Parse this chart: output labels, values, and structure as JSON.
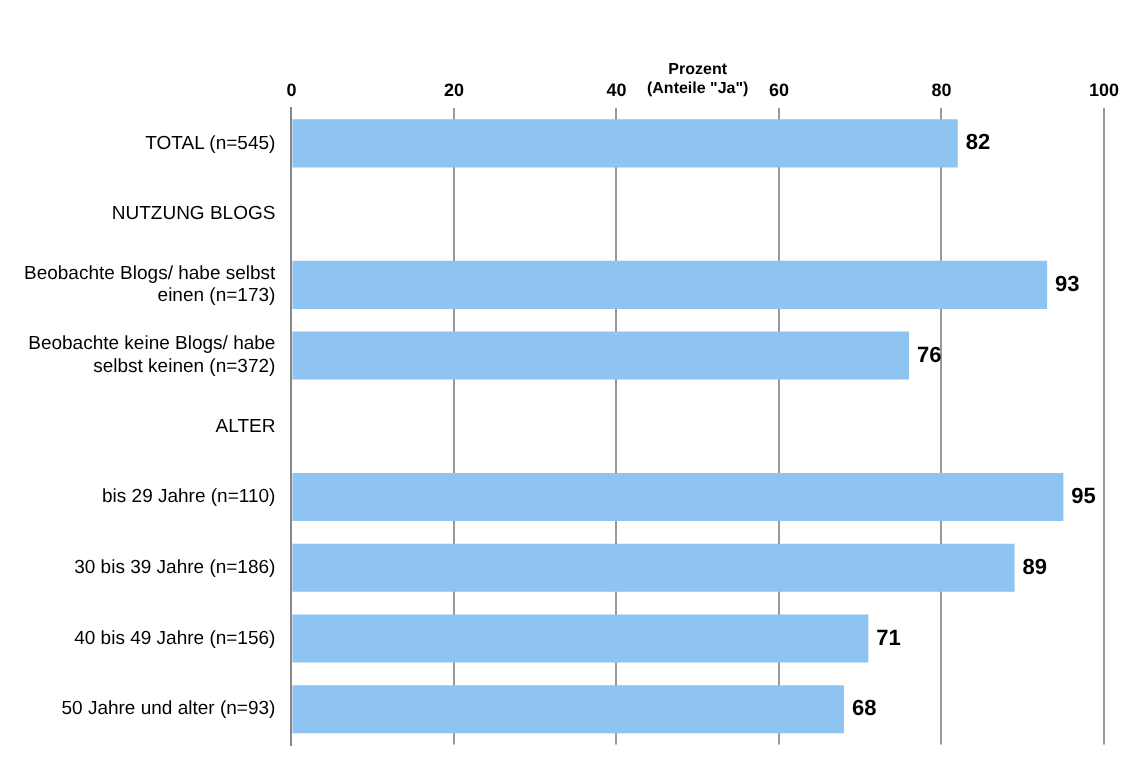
{
  "chart_data": {
    "type": "bar",
    "orientation": "horizontal",
    "xlabel": "Prozent\n(Anteile \"Ja\")",
    "categories": [
      "TOTAL (n=545)",
      "NUTZUNG BLOGS",
      "Beobachte Blogs/ habe selbst einen (n=173)",
      "Beobachte keine Blogs/ habe selbst keinen (n=372)",
      "ALTER",
      "bis 29 Jahre (n=110)",
      "30 bis 39 Jahre (n=186)",
      "40 bis 49 Jahre (n=156)",
      "50 Jahre und alter (n=93)"
    ],
    "values": [
      82,
      null,
      93,
      76,
      null,
      95,
      89,
      71,
      68
    ],
    "color": "#8fc3f2",
    "xlim": [
      0,
      100
    ],
    "xticks": [
      0,
      20,
      40,
      60,
      80,
      100
    ],
    "grid": "x",
    "data_labels": true,
    "legend": false
  }
}
